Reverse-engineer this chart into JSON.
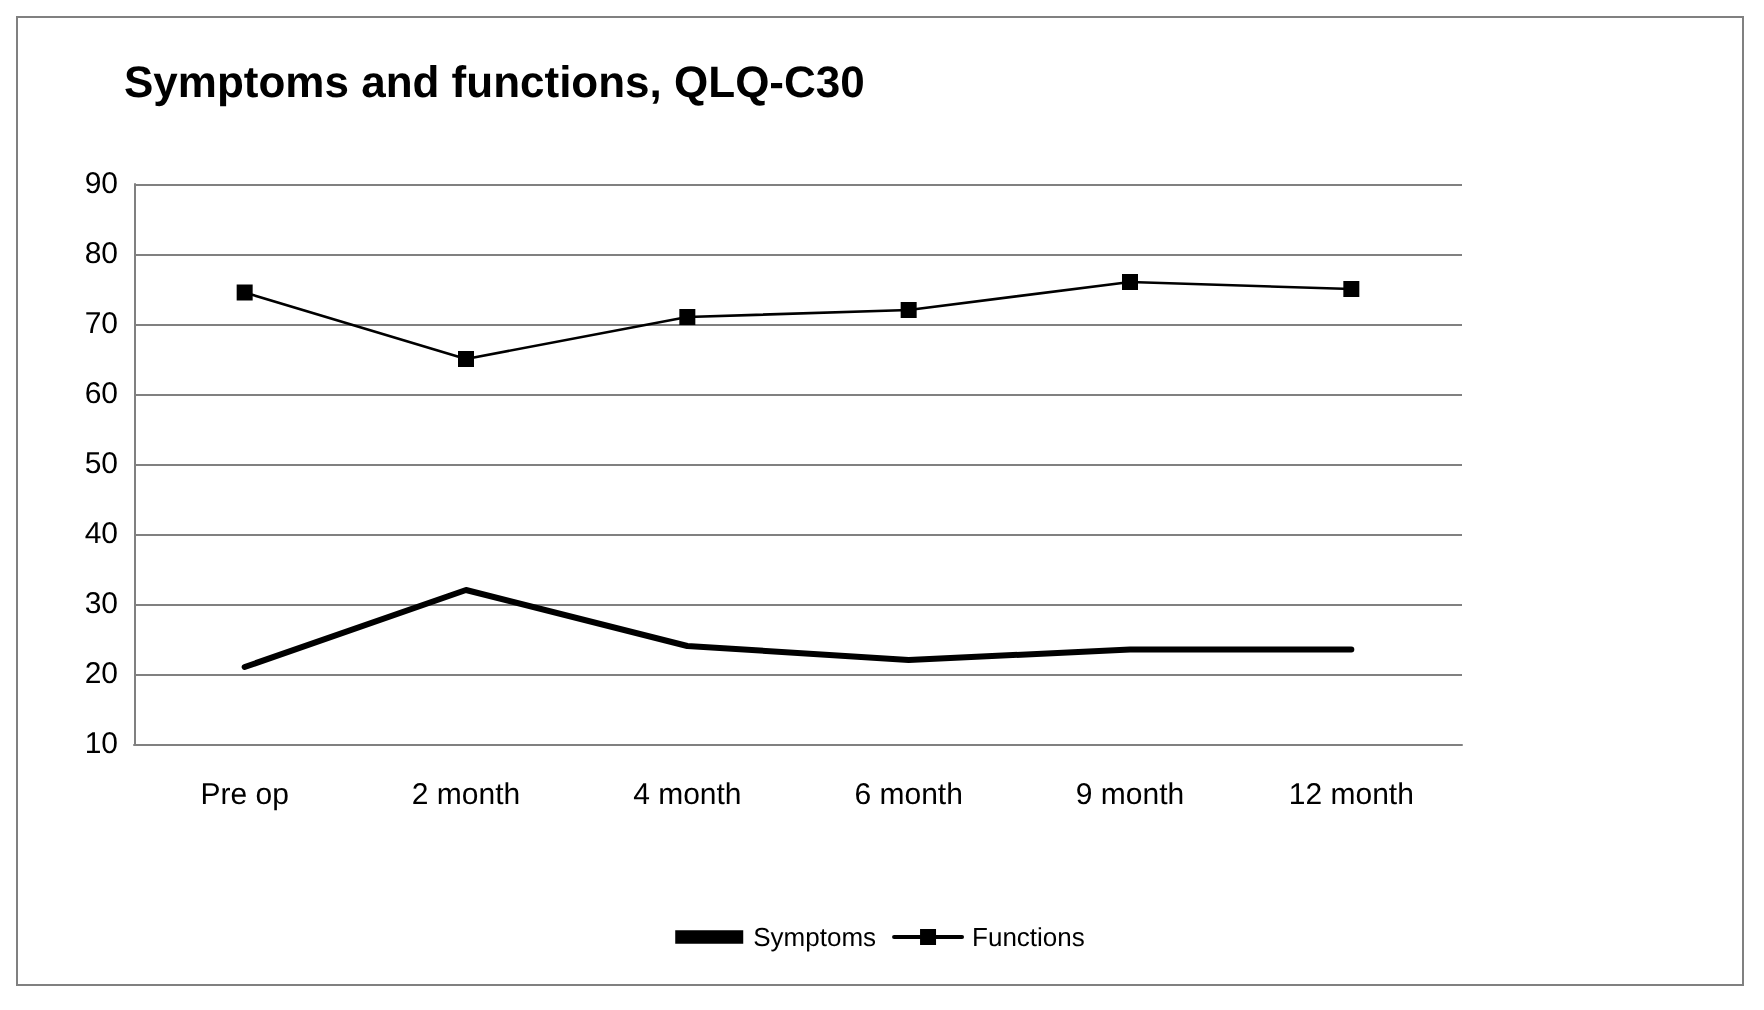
{
  "chart_data": {
    "type": "line",
    "title": "Symptoms and functions, QLQ-C30",
    "categories": [
      "Pre op",
      "2 month",
      "4 month",
      "6 month",
      "9 month",
      "12 month"
    ],
    "series": [
      {
        "name": "Symptoms",
        "color": "#000000",
        "marker": "none",
        "values": [
          21,
          32,
          24,
          22,
          23.5,
          23.5
        ]
      },
      {
        "name": "Functions",
        "color": "#000000",
        "marker": "square",
        "values": [
          74.5,
          65,
          71,
          72,
          76,
          75
        ]
      }
    ],
    "ylim": [
      10,
      90
    ],
    "yticks": [
      10,
      20,
      30,
      40,
      50,
      60,
      70,
      80,
      90
    ],
    "grid": "y",
    "legend": "bottom"
  }
}
